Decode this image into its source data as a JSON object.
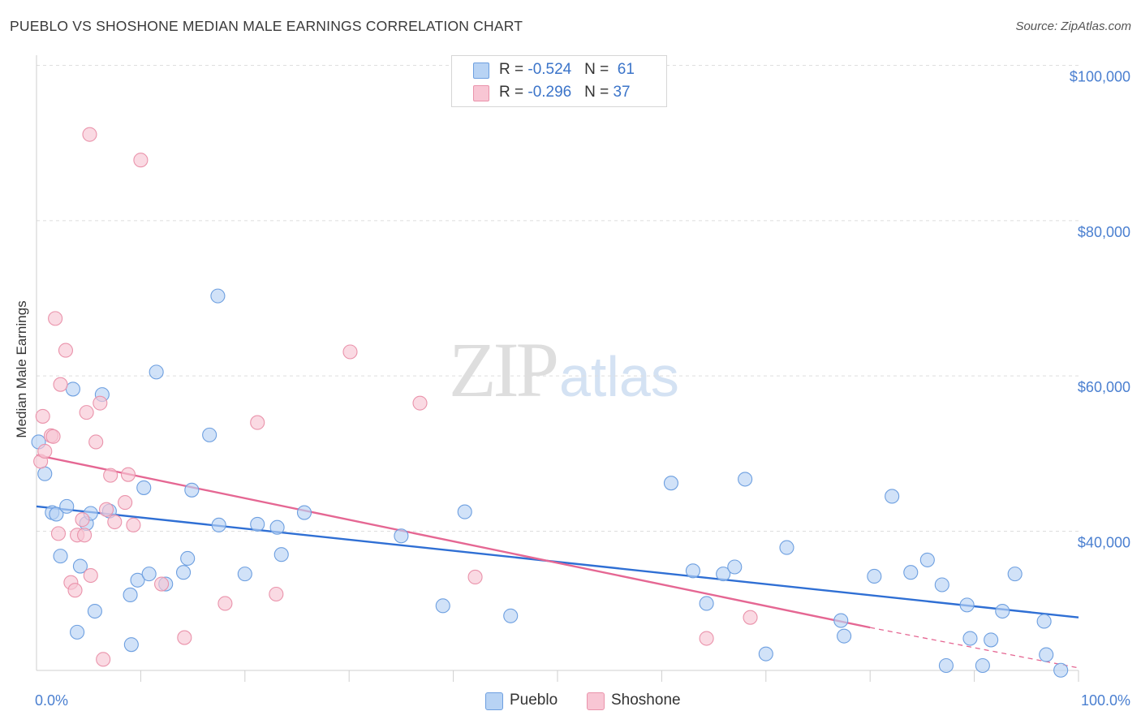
{
  "title": "PUEBLO VS SHOSHONE MEDIAN MALE EARNINGS CORRELATION CHART",
  "source": "Source: ZipAtlas.com",
  "watermark": {
    "zip": "ZIP",
    "atlas": "atlas"
  },
  "legend": {
    "rows": [
      {
        "r_label": "R = ",
        "r_value": "-0.524",
        "n_label": "N = ",
        "n_value": "61",
        "color": "#b8d3f4"
      },
      {
        "r_label": "R = ",
        "r_value": "-0.296",
        "n_label": "N = ",
        "n_value": "37",
        "color": "#f8c6d4"
      }
    ]
  },
  "bottom_legend": [
    {
      "label": "Pueblo",
      "color": "#b8d3f4"
    },
    {
      "label": "Shoshone",
      "color": "#f8c6d4"
    }
  ],
  "chart_data": {
    "type": "scatter",
    "title": "PUEBLO VS SHOSHONE MEDIAN MALE EARNINGS CORRELATION CHART",
    "xlabel": "",
    "ylabel": "Median Male Earnings",
    "xlim": [
      0,
      100
    ],
    "ylim": [
      20000,
      102000
    ],
    "x_tick_labels": [
      "0.0%",
      "100.0%"
    ],
    "y_ticks": [
      40000,
      60000,
      80000,
      100000
    ],
    "y_tick_labels": [
      "$40,000",
      "$60,000",
      "$80,000",
      "$100,000"
    ],
    "grid": true,
    "legend_position": "top-center",
    "series": [
      {
        "name": "Pueblo",
        "color": "#b8d3f4",
        "edge_color": "#6d9fe0",
        "trend_color": "#2f6fd4",
        "trend": {
          "x0": 0,
          "y0": 43200,
          "x1": 100,
          "y1": 28900
        },
        "points": [
          [
            0.2,
            51500
          ],
          [
            0.8,
            47400
          ],
          [
            1.5,
            42400
          ],
          [
            1.9,
            42200
          ],
          [
            2.3,
            36800
          ],
          [
            2.9,
            43200
          ],
          [
            3.5,
            58300
          ],
          [
            3.9,
            27000
          ],
          [
            4.2,
            35500
          ],
          [
            4.8,
            41000
          ],
          [
            5.2,
            42300
          ],
          [
            5.6,
            29700
          ],
          [
            6.3,
            57600
          ],
          [
            7.0,
            42600
          ],
          [
            9.0,
            31800
          ],
          [
            9.1,
            25400
          ],
          [
            9.7,
            33700
          ],
          [
            10.3,
            45600
          ],
          [
            10.8,
            34500
          ],
          [
            11.5,
            60500
          ],
          [
            12.4,
            33200
          ],
          [
            14.1,
            34700
          ],
          [
            14.5,
            36500
          ],
          [
            14.9,
            45300
          ],
          [
            16.6,
            52400
          ],
          [
            17.4,
            70300
          ],
          [
            17.5,
            40800
          ],
          [
            20.0,
            34500
          ],
          [
            21.2,
            40900
          ],
          [
            23.1,
            40500
          ],
          [
            23.5,
            37000
          ],
          [
            25.7,
            42400
          ],
          [
            35.0,
            39400
          ],
          [
            39.0,
            30400
          ],
          [
            41.1,
            42500
          ],
          [
            45.5,
            29100
          ],
          [
            60.9,
            46200
          ],
          [
            63.0,
            34900
          ],
          [
            64.3,
            30700
          ],
          [
            65.9,
            34500
          ],
          [
            67.0,
            35400
          ],
          [
            68.0,
            46700
          ],
          [
            70.0,
            24200
          ],
          [
            72.0,
            37900
          ],
          [
            77.2,
            28500
          ],
          [
            77.5,
            26500
          ],
          [
            80.4,
            34200
          ],
          [
            82.1,
            44500
          ],
          [
            83.9,
            34700
          ],
          [
            85.5,
            36300
          ],
          [
            86.9,
            33100
          ],
          [
            87.3,
            22700
          ],
          [
            89.3,
            30500
          ],
          [
            89.6,
            26200
          ],
          [
            90.8,
            22700
          ],
          [
            91.6,
            26000
          ],
          [
            92.7,
            29700
          ],
          [
            93.9,
            34500
          ],
          [
            96.7,
            28400
          ],
          [
            96.9,
            24100
          ],
          [
            98.3,
            22100
          ]
        ]
      },
      {
        "name": "Shoshone",
        "color": "#f8c6d4",
        "edge_color": "#ea93ab",
        "trend_color": "#e56793",
        "trend": {
          "x0": 0,
          "y0": 49800,
          "x1": 80,
          "y1": 27600
        },
        "trend_dashed_to": {
          "x": 100,
          "y": 22400
        },
        "points": [
          [
            0.4,
            49000
          ],
          [
            0.6,
            54800
          ],
          [
            0.8,
            50300
          ],
          [
            1.4,
            52300
          ],
          [
            1.6,
            52200
          ],
          [
            1.8,
            67400
          ],
          [
            2.1,
            39700
          ],
          [
            2.3,
            58900
          ],
          [
            2.8,
            63300
          ],
          [
            3.3,
            33400
          ],
          [
            3.7,
            32400
          ],
          [
            3.9,
            39500
          ],
          [
            4.4,
            41500
          ],
          [
            4.6,
            39500
          ],
          [
            4.8,
            55300
          ],
          [
            5.1,
            91100
          ],
          [
            5.2,
            34300
          ],
          [
            5.7,
            51500
          ],
          [
            6.1,
            56500
          ],
          [
            6.4,
            23500
          ],
          [
            6.7,
            42800
          ],
          [
            7.1,
            47200
          ],
          [
            7.5,
            41200
          ],
          [
            8.5,
            43700
          ],
          [
            8.8,
            47300
          ],
          [
            9.3,
            40800
          ],
          [
            10.0,
            87800
          ],
          [
            12.0,
            33200
          ],
          [
            14.2,
            26300
          ],
          [
            18.1,
            30700
          ],
          [
            21.2,
            54000
          ],
          [
            23.0,
            31900
          ],
          [
            30.1,
            63100
          ],
          [
            36.8,
            56500
          ],
          [
            42.1,
            34100
          ],
          [
            64.3,
            26200
          ],
          [
            68.5,
            28900
          ]
        ]
      }
    ]
  }
}
